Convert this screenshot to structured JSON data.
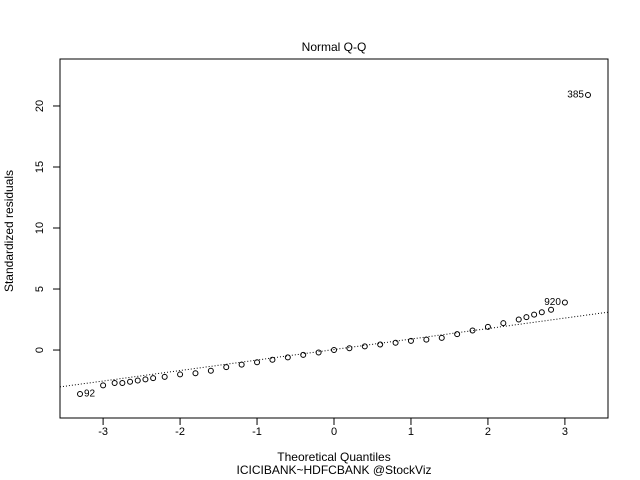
{
  "chart_data": {
    "type": "scatter",
    "title": "Normal Q-Q",
    "x_label": "Theoretical Quantiles",
    "y_label": "Standardized residuals",
    "subtitle": "ICICIBANK~HDFCBANK @StockViz",
    "x": [
      -3.3,
      -3.0,
      -2.85,
      -2.75,
      -2.65,
      -2.55,
      -2.45,
      -2.35,
      -2.2,
      -2.0,
      -1.8,
      -1.6,
      -1.4,
      -1.2,
      -1.0,
      -0.8,
      -0.6,
      -0.4,
      -0.2,
      0,
      0.2,
      0.4,
      0.6,
      0.8,
      1.0,
      1.2,
      1.4,
      1.6,
      1.8,
      2.0,
      2.2,
      2.4,
      2.5,
      2.6,
      2.7,
      2.82,
      3.0,
      3.3
    ],
    "values": [
      -3.6,
      -2.9,
      -2.7,
      -2.7,
      -2.6,
      -2.5,
      -2.4,
      -2.3,
      -2.2,
      -2.0,
      -1.9,
      -1.7,
      -1.4,
      -1.2,
      -1.0,
      -0.8,
      -0.6,
      -0.4,
      -0.2,
      0,
      0.15,
      0.3,
      0.45,
      0.6,
      0.75,
      0.85,
      1.0,
      1.3,
      1.6,
      1.9,
      2.2,
      2.5,
      2.7,
      2.9,
      3.1,
      3.3,
      3.9,
      20.9
    ],
    "point_labels": [
      "92",
      null,
      null,
      null,
      null,
      null,
      null,
      null,
      null,
      null,
      null,
      null,
      null,
      null,
      null,
      null,
      null,
      null,
      null,
      null,
      null,
      null,
      null,
      null,
      null,
      null,
      null,
      null,
      null,
      null,
      null,
      null,
      null,
      null,
      null,
      null,
      "920",
      "385"
    ],
    "qq_line": {
      "intercept": 0.04,
      "slope": 0.86
    },
    "color": "#000000",
    "xlim": [
      -3.56,
      3.56
    ],
    "ylim": [
      -5.57,
      23.85
    ],
    "xticks": [
      -3,
      -2,
      -1,
      0,
      1,
      2,
      3
    ],
    "yticks": [
      0,
      5,
      10,
      15,
      20
    ]
  }
}
